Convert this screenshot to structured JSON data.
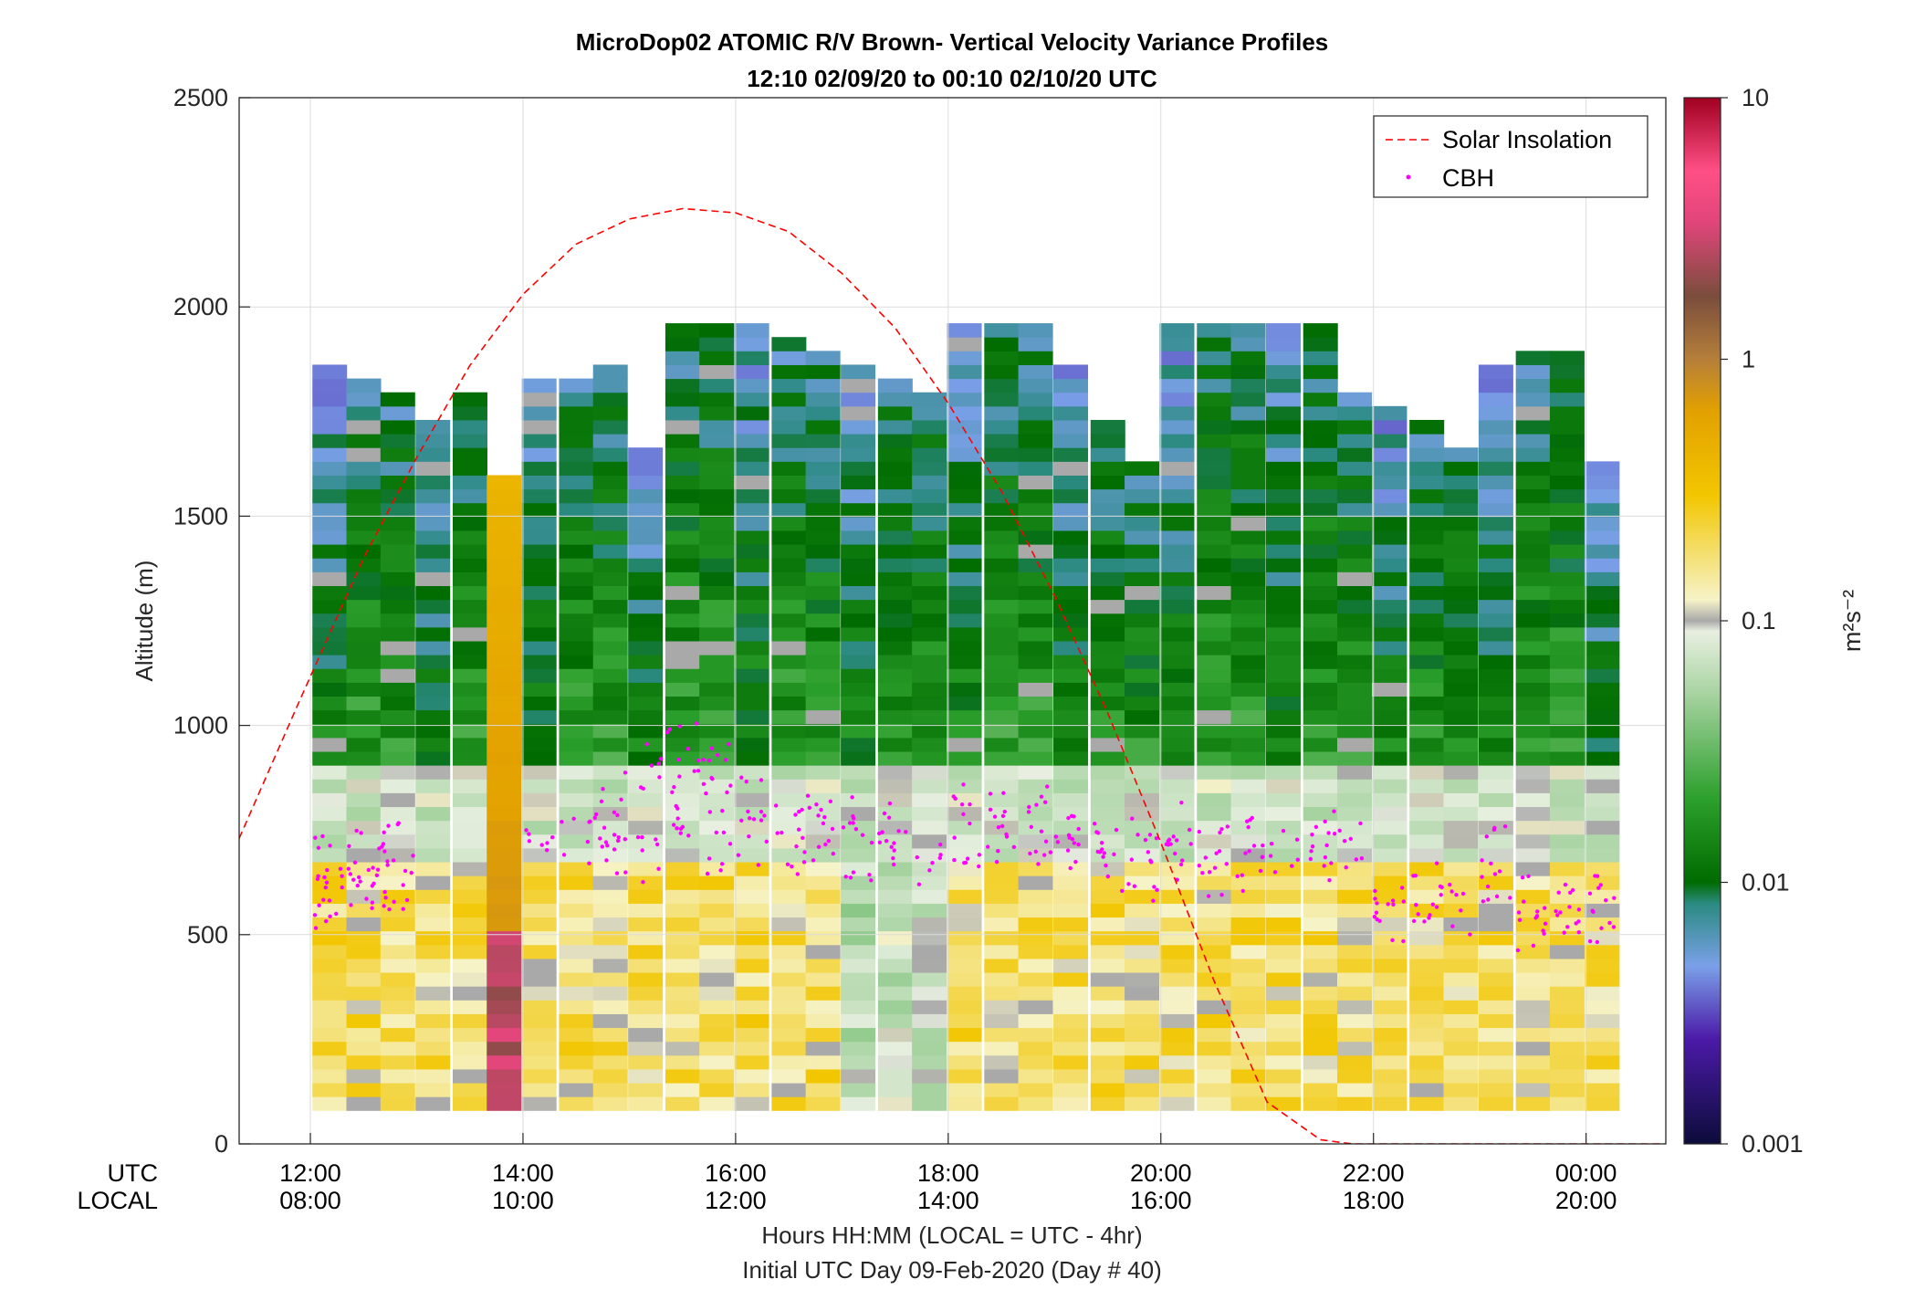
{
  "chart_data": {
    "type": "heatmap",
    "title": "MicroDop02 ATOMIC R/V Brown- Vertical Velocity Variance Profiles",
    "subtitle": "12:10 02/09/20 to 00:10 02/10/20  UTC",
    "ylabel": "Altitude (m)",
    "xlabel": "Hours HH:MM  (LOCAL = UTC - 4hr)",
    "xlabel2": "Initial UTC Day 09-Feb-2020 (Day # 40)",
    "row_label_utc": "UTC",
    "row_label_local": "LOCAL",
    "x_range_hours_utc": [
      11.33,
      24.75
    ],
    "ylim": [
      0,
      2500
    ],
    "y_ticks": [
      "0",
      "500",
      "1000",
      "1500",
      "2000",
      "2500"
    ],
    "y_tick_values": [
      0,
      500,
      1000,
      1500,
      2000,
      2500
    ],
    "x_tick_values": [
      12,
      14,
      16,
      18,
      20,
      22,
      24
    ],
    "x_ticks_utc": [
      "12:00",
      "14:00",
      "16:00",
      "18:00",
      "20:00",
      "22:00",
      "00:00"
    ],
    "x_ticks_local": [
      "08:00",
      "10:00",
      "12:00",
      "14:00",
      "16:00",
      "18:00",
      "20:00"
    ],
    "grid": true,
    "legend_position": "top-right",
    "legend": [
      {
        "name": "Solar Insolation",
        "style": "dashed-line",
        "color": "#ff0000"
      },
      {
        "name": "CBH",
        "style": "dots",
        "color": "#ff00ff"
      }
    ],
    "colorbar": {
      "label": "m²s⁻²",
      "scale": "log",
      "range": [
        0.001,
        10
      ],
      "ticks": [
        "0.001",
        "0.01",
        "0.1",
        "1",
        "10"
      ],
      "tick_values": [
        0.001,
        0.01,
        0.1,
        1,
        10
      ]
    },
    "solar_insolation_curve": {
      "x_hours_utc": [
        11.33,
        11.9,
        12.5,
        13.0,
        13.5,
        14.0,
        14.5,
        15.0,
        15.5,
        16.0,
        16.5,
        17.0,
        17.5,
        18.0,
        18.5,
        19.0,
        19.5,
        20.0,
        20.5,
        21.0,
        21.5,
        21.8,
        22.0,
        23.0,
        24.0,
        24.75
      ],
      "altitude_equivalent_m": [
        730,
        1060,
        1400,
        1640,
        1860,
        2030,
        2150,
        2210,
        2235,
        2225,
        2180,
        2080,
        1950,
        1770,
        1560,
        1310,
        1030,
        720,
        390,
        100,
        10,
        0,
        0,
        0,
        0,
        0
      ]
    },
    "profiles": [
      {
        "t": 12.18,
        "top": 1850,
        "cbh": [
          620,
          690,
          560
        ]
      },
      {
        "t": 12.5,
        "top": 1820,
        "cbh": [
          600,
          700,
          640
        ]
      },
      {
        "t": 12.82,
        "top": 1790,
        "cbh": [
          660,
          600,
          720
        ]
      },
      {
        "t": 13.15,
        "top": 1720,
        "cbh": []
      },
      {
        "t": 13.5,
        "top": 1780,
        "cbh": []
      },
      {
        "t": 13.82,
        "top": 1580,
        "cbh": []
      },
      {
        "t": 14.15,
        "top": 1820,
        "cbh": [
          760
        ]
      },
      {
        "t": 14.5,
        "top": 1820,
        "cbh": [
          720
        ]
      },
      {
        "t": 14.82,
        "top": 1860,
        "cbh": [
          700,
          760,
          830
        ]
      },
      {
        "t": 15.15,
        "top": 1650,
        "cbh": [
          680,
          900
        ]
      },
      {
        "t": 15.5,
        "top": 1960,
        "cbh": [
          860,
          780,
          960
        ]
      },
      {
        "t": 15.82,
        "top": 1960,
        "cbh": [
          700,
          820,
          900
        ]
      },
      {
        "t": 16.15,
        "top": 1960,
        "cbh": [
          720,
          820
        ]
      },
      {
        "t": 16.5,
        "top": 1910,
        "cbh": [
          760,
          700
        ]
      },
      {
        "t": 16.82,
        "top": 1890,
        "cbh": [
          820,
          720
        ]
      },
      {
        "t": 17.15,
        "top": 1850,
        "cbh": [
          800,
          680
        ]
      },
      {
        "t": 17.5,
        "top": 1820,
        "cbh": [
          760,
          700
        ]
      },
      {
        "t": 17.82,
        "top": 1790,
        "cbh": [
          680
        ]
      },
      {
        "t": 18.15,
        "top": 1960,
        "cbh": [
          720,
          820
        ]
      },
      {
        "t": 18.5,
        "top": 1960,
        "cbh": [
          700,
          780
        ]
      },
      {
        "t": 18.82,
        "top": 1960,
        "cbh": [
          720,
          800
        ]
      },
      {
        "t": 19.15,
        "top": 1860,
        "cbh": [
          700,
          760
        ]
      },
      {
        "t": 19.5,
        "top": 1700,
        "cbh": [
          660,
          720
        ]
      },
      {
        "t": 19.82,
        "top": 1620,
        "cbh": [
          640,
          720
        ]
      },
      {
        "t": 20.15,
        "top": 1930,
        "cbh": [
          680,
          760
        ]
      },
      {
        "t": 20.5,
        "top": 1930,
        "cbh": [
          640,
          720
        ]
      },
      {
        "t": 20.82,
        "top": 1950,
        "cbh": [
          660,
          720
        ]
      },
      {
        "t": 21.15,
        "top": 1960,
        "cbh": [
          700
        ]
      },
      {
        "t": 21.5,
        "top": 1960,
        "cbh": [
          680,
          740
        ]
      },
      {
        "t": 21.82,
        "top": 1790,
        "cbh": [
          720
        ]
      },
      {
        "t": 22.15,
        "top": 1740,
        "cbh": [
          540,
          600
        ]
      },
      {
        "t": 22.5,
        "top": 1700,
        "cbh": [
          560,
          620
        ]
      },
      {
        "t": 22.82,
        "top": 1640,
        "cbh": [
          560
        ]
      },
      {
        "t": 23.15,
        "top": 1850,
        "cbh": [
          600,
          700
        ]
      },
      {
        "t": 23.5,
        "top": 1890,
        "cbh": [
          520,
          580
        ]
      },
      {
        "t": 23.82,
        "top": 1890,
        "cbh": [
          520,
          560
        ]
      },
      {
        "t": 24.15,
        "top": 1600,
        "cbh": [
          540,
          620
        ]
      }
    ]
  }
}
